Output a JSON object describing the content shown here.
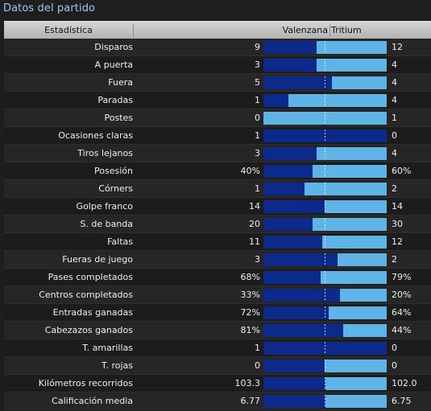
{
  "panel": {
    "title": "Datos del partido"
  },
  "header": {
    "stat": "Estadística",
    "home": "Valenzana",
    "away": "Tritium"
  },
  "colors": {
    "home_bar": "#0b2a8c",
    "away_bar": "#5eb4e6",
    "title": "#9ec6ee"
  },
  "stats": [
    {
      "label": "Disparos",
      "home": "9",
      "away": "12",
      "away_share": 0.571
    },
    {
      "label": "A puerta",
      "home": "3",
      "away": "4",
      "away_share": 0.571
    },
    {
      "label": "Fuera",
      "home": "5",
      "away": "4",
      "away_share": 0.444
    },
    {
      "label": "Paradas",
      "home": "1",
      "away": "4",
      "away_share": 0.8
    },
    {
      "label": "Postes",
      "home": "0",
      "away": "1",
      "away_share": 1.0
    },
    {
      "label": "Ocasiones claras",
      "home": "1",
      "away": "0",
      "away_share": 0.0
    },
    {
      "label": "Tiros lejanos",
      "home": "3",
      "away": "4",
      "away_share": 0.571
    },
    {
      "label": "Posesión",
      "home": "40%",
      "away": "60%",
      "away_share": 0.6
    },
    {
      "label": "Córners",
      "home": "1",
      "away": "2",
      "away_share": 0.667
    },
    {
      "label": "Golpe franco",
      "home": "14",
      "away": "14",
      "away_share": 0.5
    },
    {
      "label": "S. de banda",
      "home": "20",
      "away": "30",
      "away_share": 0.6
    },
    {
      "label": "Faltas",
      "home": "11",
      "away": "12",
      "away_share": 0.522
    },
    {
      "label": "Fueras de juego",
      "home": "3",
      "away": "2",
      "away_share": 0.4
    },
    {
      "label": "Pases completados",
      "home": "68%",
      "away": "79%",
      "away_share": 0.537
    },
    {
      "label": "Centros completados",
      "home": "33%",
      "away": "20%",
      "away_share": 0.377
    },
    {
      "label": "Entradas ganadas",
      "home": "72%",
      "away": "64%",
      "away_share": 0.471
    },
    {
      "label": "Cabezazos ganados",
      "home": "81%",
      "away": "44%",
      "away_share": 0.352
    },
    {
      "label": "T. amarillas",
      "home": "1",
      "away": "0",
      "away_share": 0.0
    },
    {
      "label": "T. rojas",
      "home": "0",
      "away": "0",
      "away_share": 0.5
    },
    {
      "label": "Kilómetros recorridos",
      "home": "103.3",
      "away": "102.0",
      "away_share": 0.497
    },
    {
      "label": "Calificación media",
      "home": "6.77",
      "away": "6.75",
      "away_share": 0.499
    }
  ]
}
